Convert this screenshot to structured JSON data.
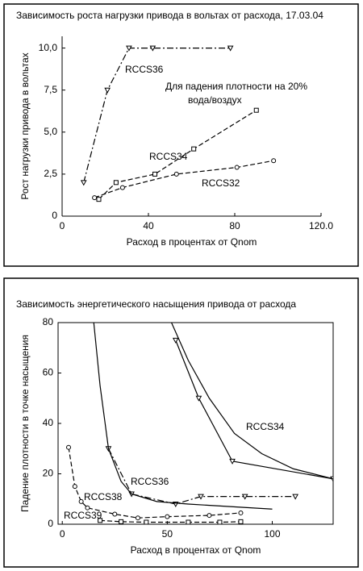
{
  "chart_data": [
    {
      "type": "line",
      "title": "Зависимость роста нагрузки привода в вольтах от расхода, 17.03.04",
      "xlabel": "Расход в процентах от Qnom",
      "ylabel": "Рост нагрузки привода в вольтах",
      "xlim": [
        0,
        120
      ],
      "ylim": [
        0,
        10.7
      ],
      "xticks": [
        0,
        40,
        80,
        {
          "value": 120,
          "label": "120.0"
        }
      ],
      "yticks": [
        0,
        {
          "value": 2.5,
          "label": "2,5"
        },
        {
          "value": 5,
          "label": "5,0"
        },
        {
          "value": 7.5,
          "label": "7,5"
        },
        {
          "value": 10,
          "label": "10,0"
        }
      ],
      "annotations": [
        "Для падения плотности на 20%",
        "вода/воздух"
      ],
      "series": [
        {
          "name": "RCCS36",
          "color": "#000000",
          "marker": "triangle",
          "dash": "dashdot",
          "x": [
            10,
            21,
            31,
            42,
            78
          ],
          "values": [
            2,
            7.5,
            10,
            10,
            10
          ]
        },
        {
          "name": "RCCS34",
          "color": "#000000",
          "marker": "square",
          "dash": "dashed",
          "x": [
            17,
            25,
            43,
            61,
            90
          ],
          "values": [
            1,
            2,
            2.5,
            4,
            6.3
          ]
        },
        {
          "name": "RCCS32",
          "color": "#000000",
          "marker": "circle",
          "dash": "dashed",
          "x": [
            15,
            28,
            53,
            81,
            98
          ],
          "values": [
            1.1,
            1.7,
            2.5,
            2.9,
            3.3
          ]
        }
      ]
    },
    {
      "type": "line",
      "title": "Зависимость энергетического насыщения привода от расхода",
      "xlabel": "Расход в процентах от Qnom",
      "ylabel": "Падение плотности в точке насыщения",
      "xlim": [
        -2,
        129
      ],
      "ylim": [
        0,
        80
      ],
      "xticks": [
        0,
        50,
        100
      ],
      "yticks": [
        0,
        20,
        40,
        60,
        80
      ],
      "annotations": [],
      "series": [
        {
          "name": "RCCS34",
          "color": "#000000",
          "marker": "triangle",
          "dash": "solid",
          "x": [
            54,
            65,
            81,
            129
          ],
          "values": [
            73,
            50,
            25,
            18
          ]
        },
        {
          "name": "RCCS36",
          "color": "#000000",
          "marker": "triangle",
          "dash": "dashdot",
          "x": [
            22,
            33,
            54,
            66,
            87,
            111
          ],
          "values": [
            30,
            12,
            8,
            11,
            11,
            11
          ]
        },
        {
          "name": "RCCS38",
          "color": "#000000",
          "marker": "circle",
          "dash": "dashed",
          "x": [
            3,
            6,
            9,
            12,
            25,
            36,
            50,
            70,
            85
          ],
          "values": [
            30.5,
            15,
            9,
            6.5,
            4,
            2.5,
            3,
            3.5,
            4.5
          ]
        },
        {
          "name": "RCCS39",
          "color": "#000000",
          "marker": "square",
          "dash": "dashed",
          "x": [
            18,
            28,
            40,
            60,
            75,
            85
          ],
          "values": [
            1.5,
            1,
            0.8,
            0.8,
            0.8,
            1
          ]
        },
        {
          "color": "#000000",
          "marker": "none",
          "dash": "solid",
          "x": [
            52,
            60,
            70,
            82,
            95,
            110,
            129
          ],
          "values": [
            80,
            65,
            50,
            36,
            28,
            22,
            18
          ]
        },
        {
          "color": "#000000",
          "marker": "none",
          "dash": "solid",
          "x": [
            15,
            18,
            22,
            28,
            33,
            45,
            60,
            100
          ],
          "values": [
            80,
            55,
            30,
            17,
            12,
            9,
            8,
            6
          ]
        }
      ]
    }
  ]
}
